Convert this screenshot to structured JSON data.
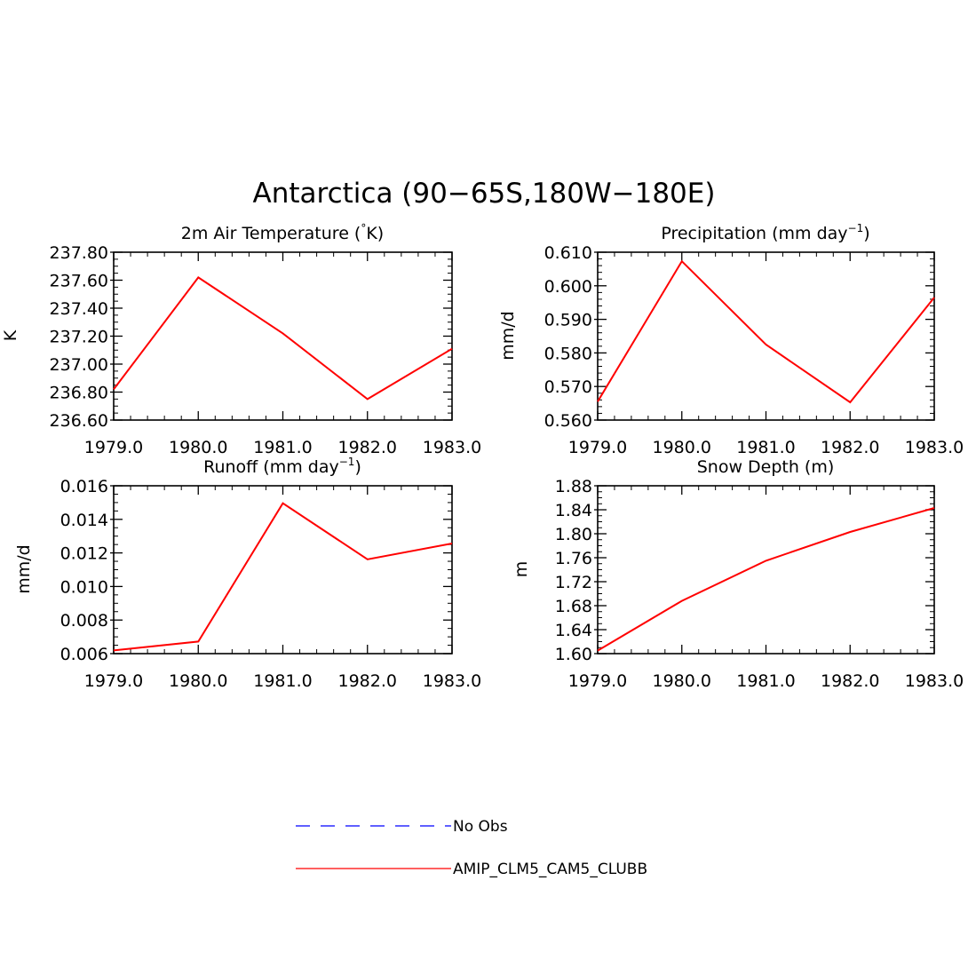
{
  "figure_title": "Antarctica (90−65S,180W−180E)",
  "colors": {
    "model": "#ff0000",
    "obs": "#0000ff",
    "axes": "#000000"
  },
  "legend": [
    {
      "label": "No Obs",
      "style": "dashed",
      "color": "#0000ff"
    },
    {
      "label": "AMIP_CLM5_CAM5_CLUBB",
      "style": "solid",
      "color": "#ff0000"
    }
  ],
  "chart_data": [
    {
      "type": "line",
      "title": "2m Air Temperature (°K)",
      "title_parts": [
        "2m Air Temperature (",
        "°",
        "K)"
      ],
      "ylabel": "K",
      "x": [
        1979,
        1980,
        1981,
        1982,
        1983
      ],
      "xticks": [
        "1979.0",
        "1980.0",
        "1981.0",
        "1982.0",
        "1983.0"
      ],
      "xlim": [
        1979,
        1983
      ],
      "ylim": [
        236.6,
        237.8
      ],
      "yticks": [
        236.6,
        236.8,
        237.0,
        237.2,
        237.4,
        237.6,
        237.8
      ],
      "ytick_labels": [
        "236.60",
        "236.80",
        "237.00",
        "237.20",
        "237.40",
        "237.60",
        "237.80"
      ],
      "minor_per_major": 4,
      "series": [
        {
          "name": "AMIP_CLM5_CAM5_CLUBB",
          "values": [
            236.82,
            237.62,
            237.22,
            236.75,
            237.11
          ]
        }
      ]
    },
    {
      "type": "line",
      "title": "Precipitation (mm day⁻¹)",
      "title_parts": [
        "Precipitation (mm day",
        "−1",
        ")"
      ],
      "ylabel": "mm/d",
      "x": [
        1979,
        1980,
        1981,
        1982,
        1983
      ],
      "xticks": [
        "1979.0",
        "1980.0",
        "1981.0",
        "1982.0",
        "1983.0"
      ],
      "xlim": [
        1979,
        1983
      ],
      "ylim": [
        0.56,
        0.61
      ],
      "yticks": [
        0.56,
        0.57,
        0.58,
        0.59,
        0.6,
        0.61
      ],
      "ytick_labels": [
        "0.560",
        "0.570",
        "0.580",
        "0.590",
        "0.600",
        "0.610"
      ],
      "minor_per_major": 5,
      "series": [
        {
          "name": "AMIP_CLM5_CAM5_CLUBB",
          "values": [
            0.5655,
            0.6073,
            0.5825,
            0.5653,
            0.5965
          ]
        }
      ]
    },
    {
      "type": "line",
      "title": "Runoff (mm day⁻¹)",
      "title_parts": [
        "Runoff (mm day",
        "−1",
        ")"
      ],
      "ylabel": "mm/d",
      "x": [
        1979,
        1980,
        1981,
        1982,
        1983
      ],
      "xticks": [
        "1979.0",
        "1980.0",
        "1981.0",
        "1982.0",
        "1983.0"
      ],
      "xlim": [
        1979,
        1983
      ],
      "ylim": [
        0.006,
        0.016
      ],
      "yticks": [
        0.006,
        0.008,
        0.01,
        0.012,
        0.014,
        0.016
      ],
      "ytick_labels": [
        "0.006",
        "0.008",
        "0.010",
        "0.012",
        "0.014",
        "0.016"
      ],
      "minor_per_major": 4,
      "series": [
        {
          "name": "AMIP_CLM5_CAM5_CLUBB",
          "values": [
            0.00619,
            0.00672,
            0.01496,
            0.01162,
            0.01256
          ]
        }
      ]
    },
    {
      "type": "line",
      "title": "Snow Depth (m)",
      "title_parts": [
        "Snow Depth (m)",
        "",
        ""
      ],
      "ylabel": "m",
      "x": [
        1979,
        1980,
        1981,
        1982,
        1983
      ],
      "xticks": [
        "1979.0",
        "1980.0",
        "1981.0",
        "1982.0",
        "1983.0"
      ],
      "xlim": [
        1979,
        1983
      ],
      "ylim": [
        1.6,
        1.88
      ],
      "yticks": [
        1.6,
        1.64,
        1.68,
        1.72,
        1.76,
        1.8,
        1.84,
        1.88
      ],
      "ytick_labels": [
        "1.60",
        "1.64",
        "1.68",
        "1.72",
        "1.76",
        "1.80",
        "1.84",
        "1.88"
      ],
      "minor_per_major": 4,
      "series": [
        {
          "name": "AMIP_CLM5_CAM5_CLUBB",
          "values": [
            1.605,
            1.688,
            1.755,
            1.803,
            1.843
          ]
        }
      ]
    }
  ]
}
